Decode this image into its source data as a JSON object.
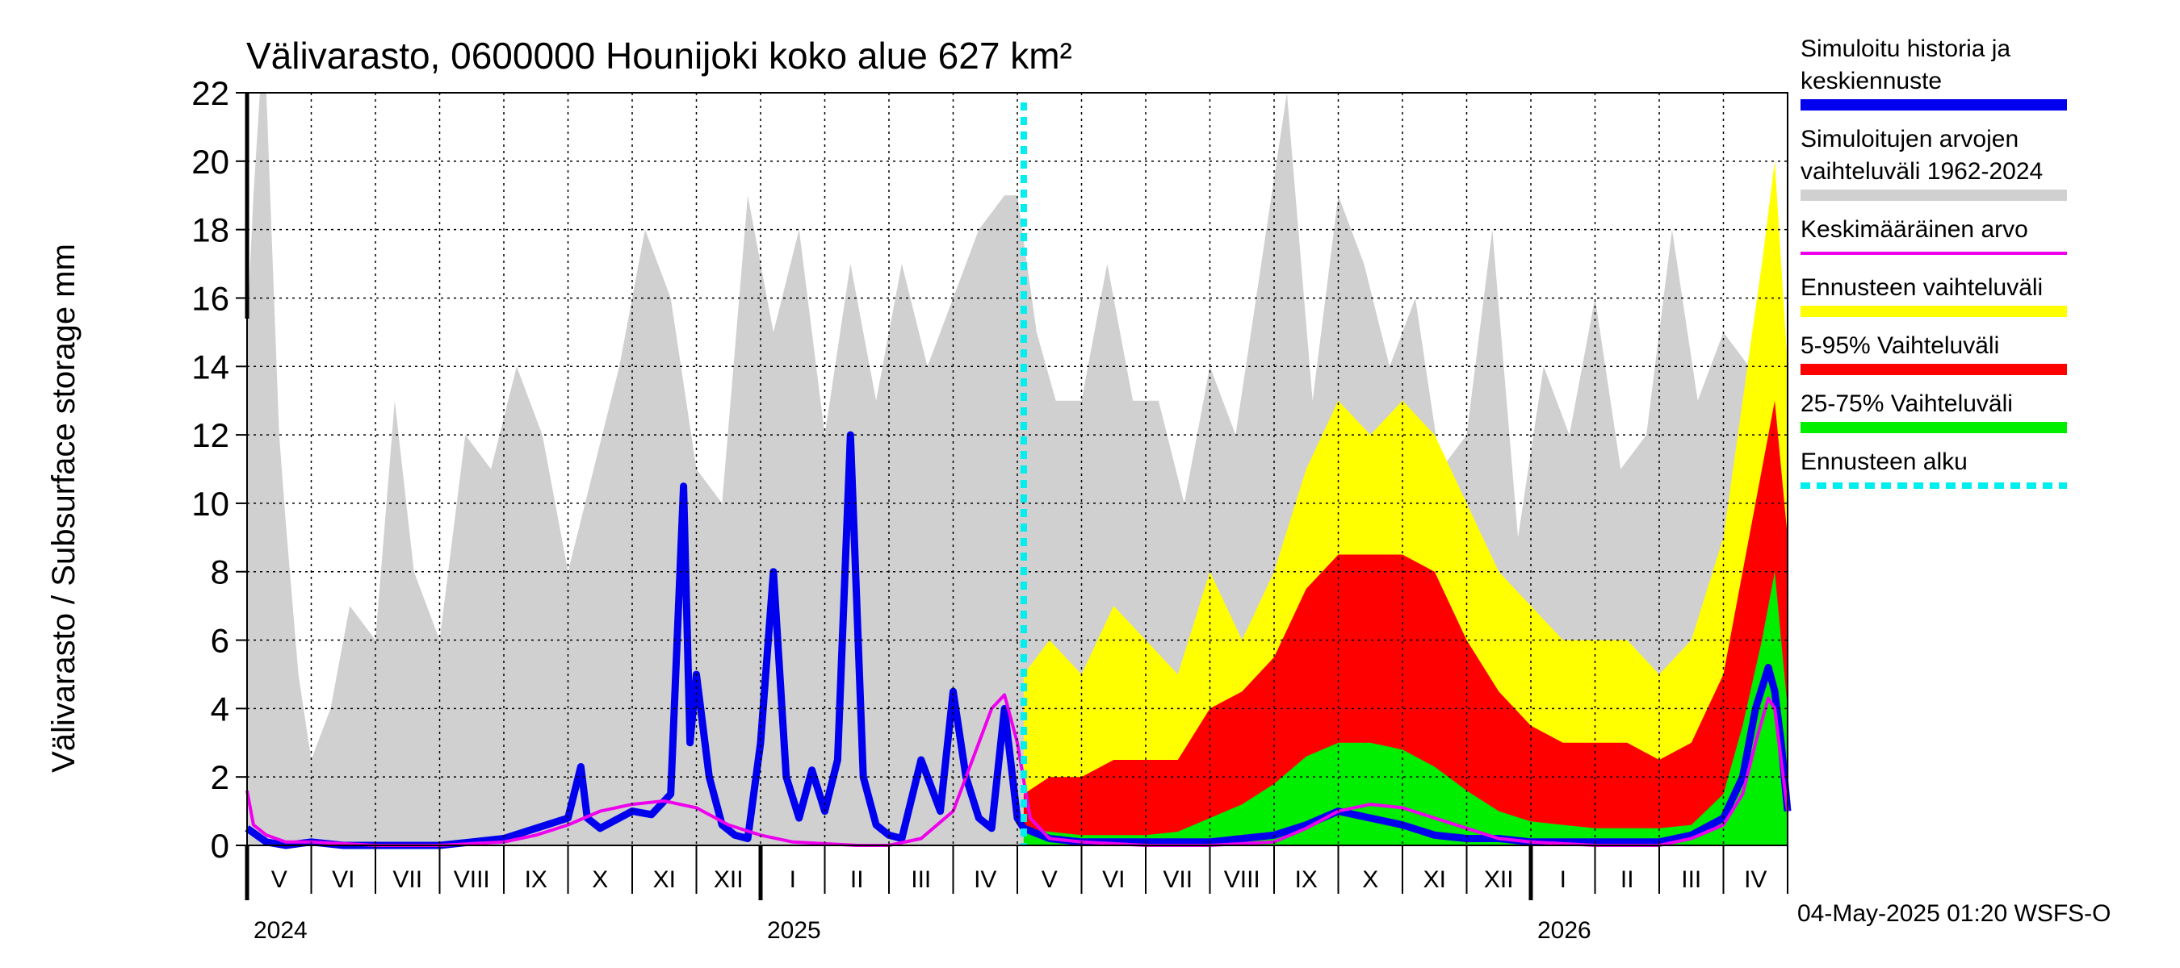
{
  "chart_data": {
    "type": "area",
    "title": "Välivarasto, 0600000 Hounijoki koko alue 627 km²",
    "ylabel": "Välivarasto / Subsurface storage  mm",
    "ylim": [
      0,
      22
    ],
    "yticks": [
      0,
      2,
      4,
      6,
      8,
      10,
      12,
      14,
      16,
      18,
      20,
      22
    ],
    "xlim_months": [
      0,
      24
    ],
    "forecast_start_month": 12.1,
    "month_labels": [
      "V",
      "VI",
      "VII",
      "VIII",
      "IX",
      "X",
      "XI",
      "XII",
      "I",
      "II",
      "III",
      "IV",
      "V",
      "VI",
      "VII",
      "VIII",
      "IX",
      "X",
      "XI",
      "XII",
      "I",
      "II",
      "III",
      "IV"
    ],
    "year_labels": [
      {
        "label": "2024",
        "month": 0
      },
      {
        "label": "2025",
        "month": 8
      },
      {
        "label": "2026",
        "month": 20
      }
    ],
    "grid": true,
    "legend_position": "right",
    "legend": [
      {
        "label": "Simuloitu historia ja keskiennuste",
        "color": "#0000ee",
        "style": "thick"
      },
      {
        "label": "Simuloitujen arvojen vaihteluväli 1962-2024",
        "color": "#d0d0d0",
        "style": "thick"
      },
      {
        "label": "Keskimääräinen arvo",
        "color": "#ee00ee",
        "style": "thin"
      },
      {
        "label": "Ennusteen vaihteluväli",
        "color": "#ffff00",
        "style": "thick"
      },
      {
        "label": "5-95% Vaihteluväli",
        "color": "#ff0000",
        "style": "thick"
      },
      {
        "label": "25-75% Vaihteluväli",
        "color": "#00ee00",
        "style": "thick"
      },
      {
        "label": "Ennusteen alku",
        "color": "#00eeee",
        "style": "dashed"
      }
    ],
    "series": [
      {
        "name": "Simuloitujen arvojen vaihteluväli 1962-2024",
        "color": "#d0d0d0",
        "x": [
          0,
          0.1,
          0.2,
          0.3,
          0.4,
          0.5,
          0.6,
          0.8,
          1,
          1.3,
          1.6,
          2,
          2.3,
          2.6,
          3,
          3.4,
          3.8,
          4.2,
          4.6,
          5,
          5.4,
          5.8,
          6.2,
          6.6,
          7,
          7.4,
          7.8,
          8.2,
          8.6,
          9,
          9.4,
          9.8,
          10.2,
          10.6,
          11,
          11.4,
          11.8,
          12,
          12.3,
          12.6,
          13,
          13.4,
          13.8,
          14.2,
          14.6,
          15,
          15.4,
          15.8,
          16.2,
          16.6,
          17,
          17.4,
          17.8,
          18.2,
          18.6,
          19,
          19.4,
          19.8,
          20.2,
          20.6,
          21,
          21.4,
          21.8,
          22.2,
          22.6,
          23,
          23.4,
          23.8,
          24
        ],
        "y": [
          15,
          19,
          22,
          22,
          17,
          12,
          9.5,
          5,
          2.5,
          4,
          7,
          6,
          13,
          8,
          6,
          12,
          11,
          14,
          12,
          8,
          11,
          14,
          18,
          16,
          11,
          10,
          19,
          15,
          18,
          12,
          17,
          13,
          17,
          14,
          16,
          18,
          19,
          19,
          15,
          13,
          13,
          17,
          13,
          13,
          10,
          14,
          12,
          17,
          22,
          13,
          19,
          17,
          14,
          16,
          11,
          12,
          18,
          9,
          14,
          12,
          16,
          11,
          12,
          18,
          13,
          15,
          14,
          12,
          10
        ]
      },
      {
        "name": "Ennusteen vaihteluväli",
        "color": "#ffff00",
        "x": [
          12.1,
          12.5,
          13,
          13.5,
          14,
          14.5,
          15,
          15.5,
          16,
          16.5,
          17,
          17.5,
          18,
          18.5,
          19,
          19.5,
          20,
          20.5,
          21,
          21.5,
          22,
          22.5,
          23,
          23.3,
          23.6,
          23.8,
          24
        ],
        "y": [
          5,
          6,
          5,
          7,
          6,
          5,
          8,
          6,
          8,
          11,
          13,
          12,
          13,
          12,
          10,
          8,
          7,
          6,
          6,
          6,
          5,
          6,
          9,
          13,
          17,
          20,
          14
        ]
      },
      {
        "name": "5-95% Vaihteluväli",
        "color": "#ff0000",
        "x": [
          12.1,
          12.5,
          13,
          13.5,
          14,
          14.5,
          15,
          15.5,
          16,
          16.5,
          17,
          17.5,
          18,
          18.5,
          19,
          19.5,
          20,
          20.5,
          21,
          21.5,
          22,
          22.5,
          23,
          23.3,
          23.6,
          23.8,
          24
        ],
        "y": [
          1.5,
          2,
          2,
          2.5,
          2.5,
          2.5,
          4,
          4.5,
          5.5,
          7.5,
          8.5,
          8.5,
          8.5,
          8,
          6,
          4.5,
          3.5,
          3,
          3,
          3,
          2.5,
          3,
          5,
          8,
          11,
          13,
          9
        ]
      },
      {
        "name": "25-75% Vaihteluväli",
        "color": "#00ee00",
        "x": [
          12.1,
          12.5,
          13,
          13.5,
          14,
          14.5,
          15,
          15.5,
          16,
          16.5,
          17,
          17.5,
          18,
          18.5,
          19,
          19.5,
          20,
          20.5,
          21,
          21.5,
          22,
          22.5,
          23,
          23.3,
          23.6,
          23.8,
          24
        ],
        "y": [
          0.5,
          0.4,
          0.3,
          0.3,
          0.3,
          0.4,
          0.8,
          1.2,
          1.8,
          2.6,
          3,
          3,
          2.8,
          2.3,
          1.6,
          1,
          0.7,
          0.6,
          0.5,
          0.5,
          0.5,
          0.6,
          1.5,
          3.5,
          6,
          8,
          4
        ]
      },
      {
        "name": "Simuloitu historia ja keskiennuste",
        "color": "#0000ee",
        "x": [
          0,
          0.3,
          0.6,
          1,
          1.5,
          2,
          2.5,
          3,
          3.5,
          4,
          4.5,
          5,
          5.2,
          5.3,
          5.5,
          5.8,
          6,
          6.3,
          6.6,
          6.8,
          6.9,
          7,
          7.2,
          7.4,
          7.6,
          7.8,
          8,
          8.2,
          8.4,
          8.6,
          8.8,
          9,
          9.2,
          9.4,
          9.6,
          9.8,
          10,
          10.2,
          10.5,
          10.8,
          11,
          11.2,
          11.4,
          11.6,
          11.8,
          12,
          12.1,
          12.5,
          13,
          14,
          15,
          16,
          16.5,
          17,
          17.5,
          18,
          18.5,
          19,
          19.5,
          20,
          21,
          22,
          22.5,
          23,
          23.3,
          23.5,
          23.7,
          23.8,
          23.9,
          24
        ],
        "y": [
          0.5,
          0.1,
          0,
          0.1,
          0,
          0,
          0,
          0,
          0.1,
          0.2,
          0.5,
          0.8,
          2.3,
          0.8,
          0.5,
          0.8,
          1,
          0.9,
          1.5,
          10.5,
          3,
          5,
          2,
          0.6,
          0.3,
          0.2,
          3,
          8,
          2,
          0.8,
          2.2,
          1,
          2.5,
          12,
          2,
          0.6,
          0.3,
          0.2,
          2.5,
          1,
          4.5,
          2,
          0.8,
          0.5,
          4,
          0.8,
          0.5,
          0.2,
          0.1,
          0.1,
          0.1,
          0.3,
          0.6,
          1,
          0.8,
          0.6,
          0.3,
          0.2,
          0.2,
          0.1,
          0.1,
          0.1,
          0.3,
          0.8,
          2,
          4,
          5.2,
          4.5,
          3,
          1
        ]
      },
      {
        "name": "Keskimääräinen arvo",
        "color": "#ee00ee",
        "x": [
          0,
          0.1,
          0.3,
          0.6,
          1,
          2,
          3,
          4,
          4.5,
          5,
          5.5,
          6,
          6.5,
          7,
          7.5,
          8,
          8.5,
          9,
          9.5,
          10,
          10.5,
          11,
          11.3,
          11.6,
          11.8,
          12,
          12.2,
          12.5,
          13,
          14,
          15,
          16,
          16.5,
          17,
          17.5,
          18,
          18.5,
          19,
          19.5,
          20,
          21,
          22,
          22.5,
          23,
          23.3,
          23.5,
          23.7,
          23.8,
          23.9,
          24
        ],
        "y": [
          1.6,
          0.6,
          0.3,
          0.1,
          0.1,
          0,
          0,
          0.1,
          0.3,
          0.6,
          1,
          1.2,
          1.3,
          1.1,
          0.6,
          0.3,
          0.1,
          0.05,
          0,
          0,
          0.2,
          1,
          2.5,
          4,
          4.4,
          3,
          0.8,
          0.2,
          0.1,
          0,
          0,
          0.1,
          0.5,
          1,
          1.2,
          1.1,
          0.8,
          0.5,
          0.2,
          0.1,
          0,
          0,
          0.2,
          0.6,
          1.5,
          3,
          4.3,
          4,
          2.5,
          1
        ]
      }
    ]
  },
  "footer": "04-May-2025 01:20 WSFS-O"
}
